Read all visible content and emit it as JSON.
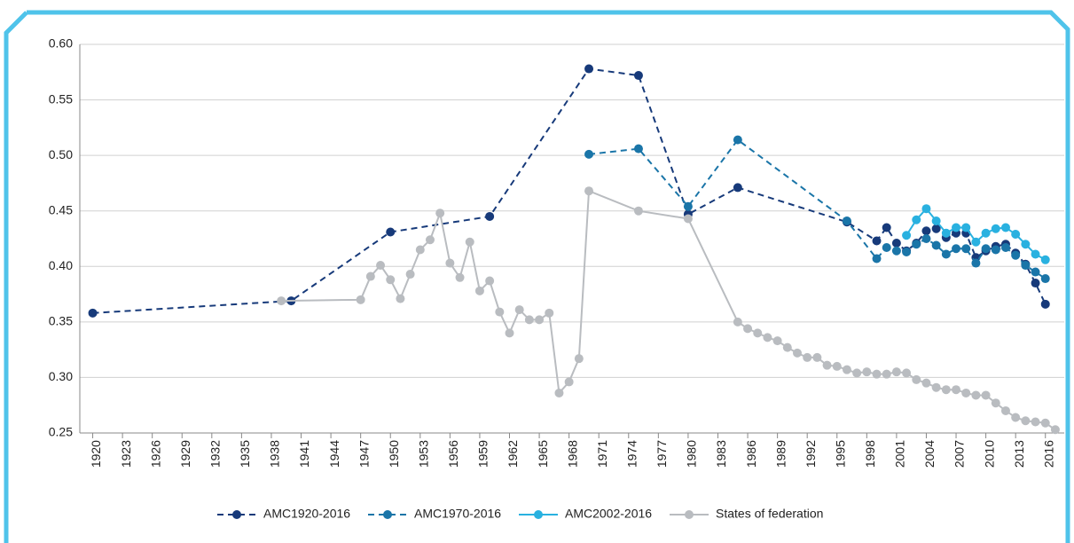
{
  "chart_data": {
    "type": "line",
    "xlim": [
      1918.7,
      2017.9
    ],
    "xticks": [
      1920,
      1923,
      1926,
      1929,
      1932,
      1935,
      1938,
      1941,
      1944,
      1947,
      1950,
      1953,
      1956,
      1959,
      1962,
      1965,
      1968,
      1971,
      1974,
      1977,
      1980,
      1983,
      1986,
      1989,
      1992,
      1995,
      1998,
      2001,
      2004,
      2007,
      2010,
      2013,
      2016
    ],
    "ylim": [
      0.25,
      0.6
    ],
    "yticks": [
      {
        "value": 0.25,
        "label": "0.25"
      },
      {
        "value": 0.3,
        "label": "0.30"
      },
      {
        "value": 0.35,
        "label": "0.35"
      },
      {
        "value": 0.4,
        "label": "0.40"
      },
      {
        "value": 0.45,
        "label": "0.45"
      },
      {
        "value": 0.5,
        "label": "0.50"
      },
      {
        "value": 0.55,
        "label": "0.55"
      },
      {
        "value": 0.6,
        "label": "0.60"
      }
    ],
    "grid": true,
    "legend": "bottom",
    "series": [
      {
        "name": "AMC1920-2016",
        "color": "#173a7a",
        "dashed": true,
        "x": [
          1920,
          1940,
          1950,
          1960,
          1970,
          1975,
          1980,
          1985,
          1996,
          1999,
          2000,
          2001,
          2002,
          2003,
          2004,
          2005,
          2006,
          2007,
          2008,
          2009,
          2010,
          2011,
          2012,
          2013,
          2014,
          2015,
          2016
        ],
        "values": [
          0.358,
          0.369,
          0.431,
          0.445,
          0.578,
          0.572,
          0.447,
          0.471,
          0.44,
          0.423,
          0.435,
          0.421,
          0.414,
          0.421,
          0.432,
          0.434,
          0.426,
          0.43,
          0.43,
          0.408,
          0.414,
          0.418,
          0.42,
          0.412,
          0.402,
          0.385,
          0.366
        ]
      },
      {
        "name": "AMC1970-2016",
        "color": "#1a75a8",
        "dashed": true,
        "x": [
          1970,
          1975,
          1980,
          1985,
          1996,
          1999,
          2000,
          2001,
          2002,
          2003,
          2004,
          2005,
          2006,
          2007,
          2008,
          2009,
          2010,
          2011,
          2012,
          2013,
          2014,
          2015,
          2016
        ],
        "values": [
          0.501,
          0.506,
          0.454,
          0.514,
          0.441,
          0.407,
          0.417,
          0.414,
          0.413,
          0.42,
          0.425,
          0.419,
          0.411,
          0.416,
          0.416,
          0.403,
          0.416,
          0.415,
          0.417,
          0.41,
          0.401,
          0.395,
          0.389
        ]
      },
      {
        "name": "AMC2002-2016",
        "color": "#29b1e0",
        "dashed": false,
        "x": [
          2002,
          2003,
          2004,
          2005,
          2006,
          2007,
          2008,
          2009,
          2010,
          2011,
          2012,
          2013,
          2014,
          2015,
          2016
        ],
        "values": [
          0.428,
          0.442,
          0.452,
          0.441,
          0.43,
          0.435,
          0.435,
          0.422,
          0.43,
          0.434,
          0.435,
          0.429,
          0.42,
          0.411,
          0.406
        ]
      },
      {
        "name": "States of federation",
        "color": "#b9bcc0",
        "dashed": false,
        "x": [
          1939,
          1947,
          1948,
          1949,
          1950,
          1951,
          1952,
          1953,
          1954,
          1955,
          1956,
          1957,
          1958,
          1959,
          1960,
          1961,
          1962,
          1963,
          1964,
          1965,
          1966,
          1967,
          1968,
          1969,
          1970,
          1975,
          1980,
          1985,
          1986,
          1987,
          1988,
          1989,
          1990,
          1991,
          1992,
          1993,
          1994,
          1995,
          1996,
          1997,
          1998,
          1999,
          2000,
          2001,
          2002,
          2003,
          2004,
          2005,
          2006,
          2007,
          2008,
          2009,
          2010,
          2011,
          2012,
          2013,
          2014,
          2015,
          2016,
          2017
        ],
        "values": [
          0.369,
          0.37,
          0.391,
          0.401,
          0.388,
          0.371,
          0.393,
          0.415,
          0.424,
          0.448,
          0.403,
          0.39,
          0.422,
          0.378,
          0.387,
          0.359,
          0.34,
          0.361,
          0.352,
          0.352,
          0.358,
          0.286,
          0.296,
          0.317,
          0.468,
          0.45,
          0.443,
          0.35,
          0.344,
          0.34,
          0.336,
          0.333,
          0.327,
          0.322,
          0.318,
          0.318,
          0.311,
          0.31,
          0.307,
          0.304,
          0.305,
          0.303,
          0.303,
          0.305,
          0.304,
          0.298,
          0.295,
          0.291,
          0.289,
          0.289,
          0.286,
          0.284,
          0.284,
          0.277,
          0.27,
          0.264,
          0.261,
          0.26,
          0.259,
          0.253
        ]
      }
    ]
  }
}
